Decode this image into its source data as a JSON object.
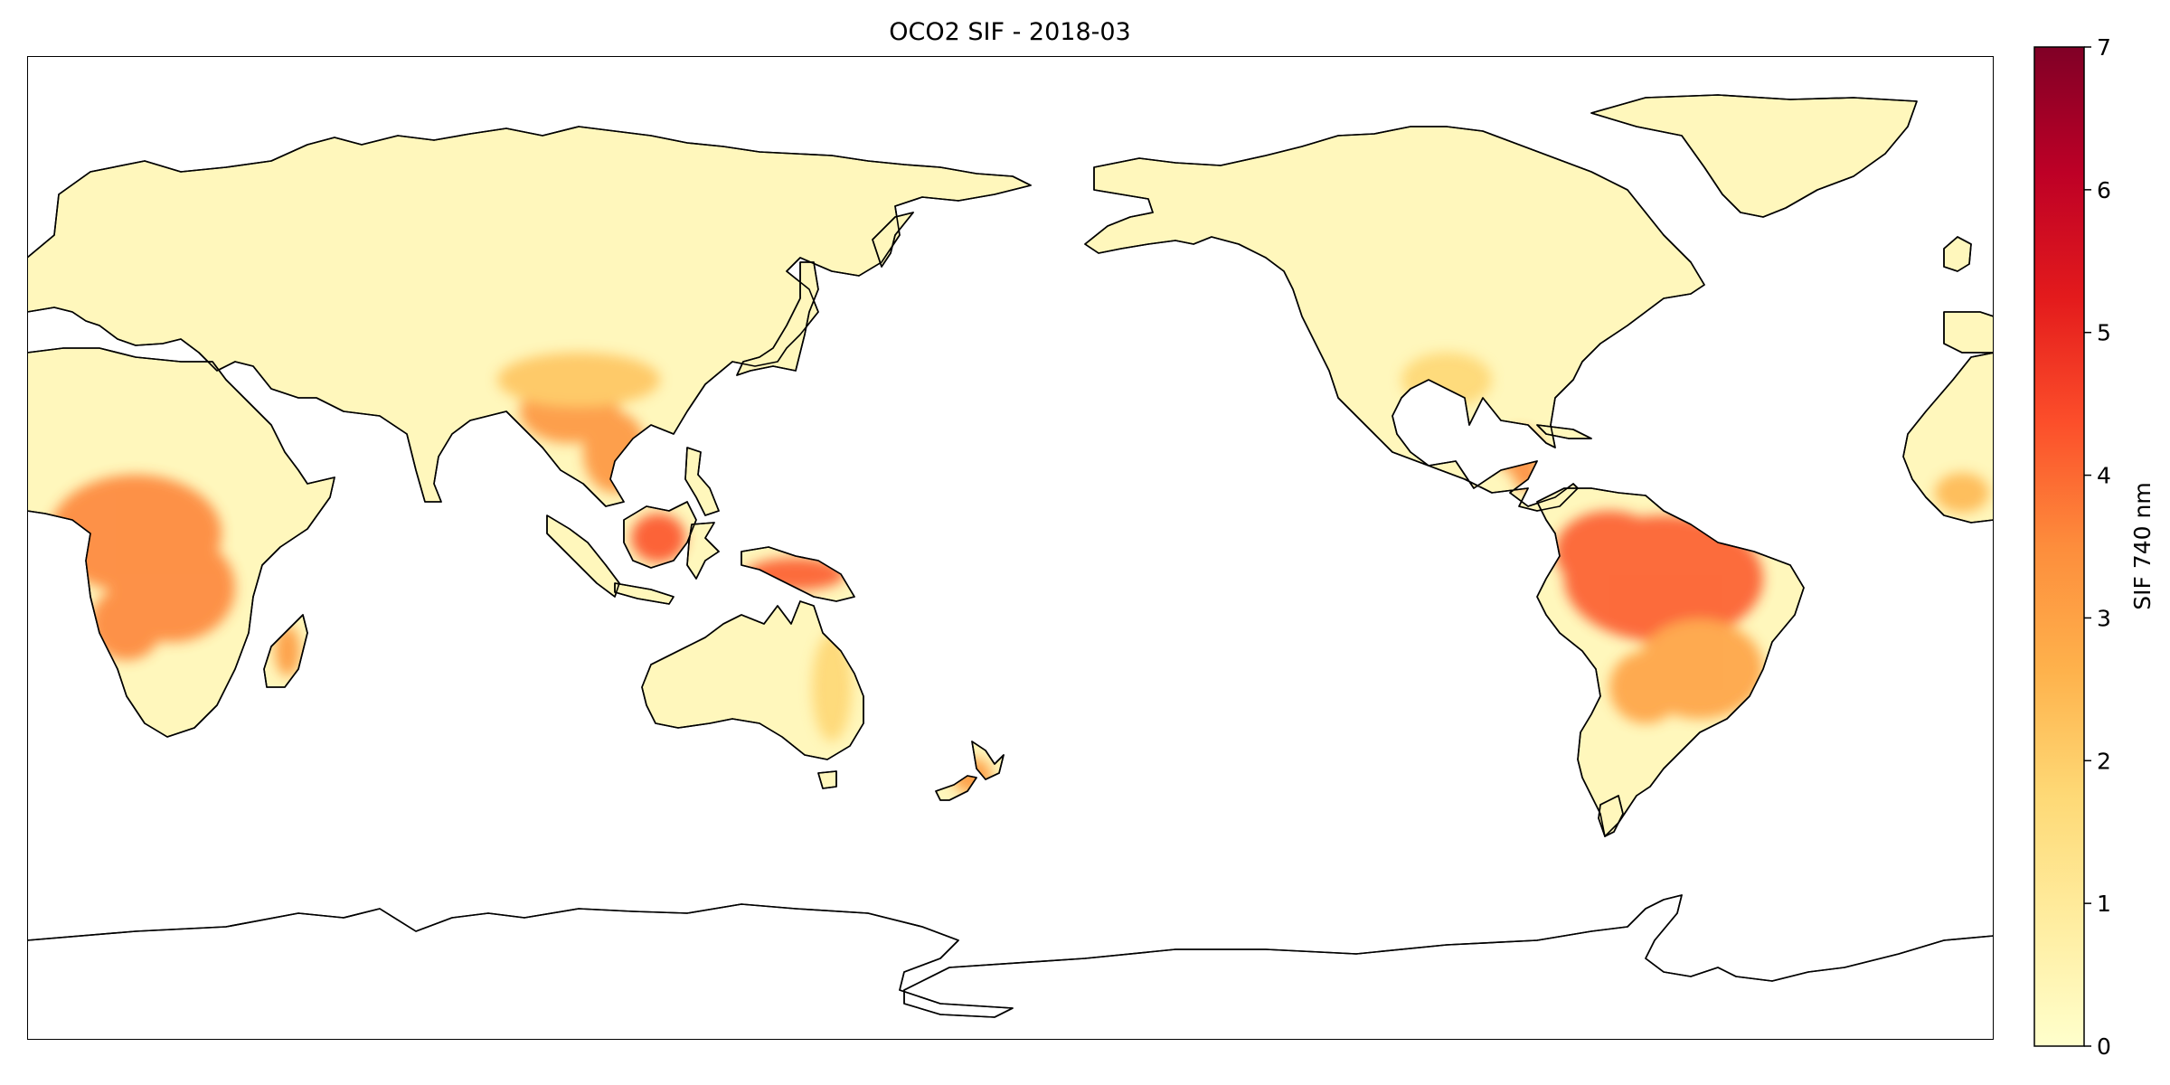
{
  "title": "OCO2 SIF - 2018-03",
  "colorbar": {
    "label": "SIF 740 nm",
    "min": 0,
    "max": 7,
    "ticks": [
      "0",
      "1",
      "2",
      "3",
      "4",
      "5",
      "6",
      "7"
    ],
    "colormap": "YlOrRd",
    "stops": [
      "#ffffcc",
      "#ffeda0",
      "#fed976",
      "#feb24c",
      "#fd8d3c",
      "#fc4e2a",
      "#e31a1c",
      "#bd0026",
      "#800026"
    ]
  },
  "map": {
    "projection": "PlateCarree",
    "central_longitude": 180,
    "land_fill": "#fff7bc",
    "ocean_fill": "#ffffff",
    "coastline_color": "#000000",
    "regions": [
      {
        "name": "sub-saharan-africa",
        "sif": 3.6
      },
      {
        "name": "amazon-basin",
        "sif": 4.2
      },
      {
        "name": "brazil-south",
        "sif": 3.0
      },
      {
        "name": "southeast-asia",
        "sif": 3.3
      },
      {
        "name": "borneo",
        "sif": 4.3
      },
      {
        "name": "new-guinea",
        "sif": 4.2
      },
      {
        "name": "madagascar",
        "sif": 3.2
      },
      {
        "name": "new-zealand",
        "sif": 3.2
      },
      {
        "name": "central-america",
        "sif": 3.5
      },
      {
        "name": "south-china",
        "sif": 2.2
      },
      {
        "name": "eastern-australia",
        "sif": 1.8
      },
      {
        "name": "southeastern-us",
        "sif": 1.8
      },
      {
        "name": "west-africa-coast",
        "sif": 2.5
      }
    ]
  }
}
